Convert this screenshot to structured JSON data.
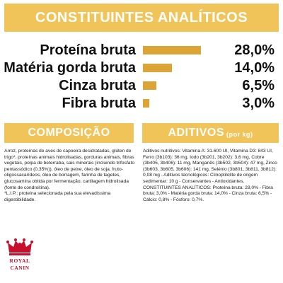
{
  "analytics": {
    "heading": "CONSTITUINTES ANALÍTICOS",
    "rows": [
      {
        "label": "Proteína bruta",
        "value_text": "28,0%",
        "value": 28.0
      },
      {
        "label": "Matéria gorda bruta",
        "value_text": "14,0%",
        "value": 14.0
      },
      {
        "label": "Cinza bruta",
        "value_text": "6,5%",
        "value": 6.5
      },
      {
        "label": "Fibra bruta",
        "value_text": "3,0%",
        "value": 3.0
      }
    ],
    "bar_color": "#dca434"
  },
  "composition": {
    "heading": "COMPOSIÇÃO",
    "paragraphs": [
      "Arroz, proteínas de aves de capoeira desidratadas, glúten de trigo*, proteínas animais hidrolisadas, gorduras animais, fibras vegetais, polpa de beterraba, sais minerais (incluindo trifosfato pentassódico (0,35%)), óleo de peixe, óleo de soja, fruto-oligossacarídeos, óleo de borragem, farinha de tagetes, glucosamina obtida por fermentação, cartilagem hidrolisada (fonte de condroitina).",
      "*L.I.P.: proteína selecionada pela sua elevadíssima digestibilidade."
    ]
  },
  "additives": {
    "heading": "ADITIVOS",
    "unit": "(por kg)",
    "paragraphs": [
      "Aditivos nutritivos: Vitamina A: 31.600 UI, Vitamina D3: 843 UI, Ferro (3b103): 36 mg, Iodo (3b201, 3b202): 3,6 mg, Cobre (3b405, 3b406): 11 mg, Manganês (3b502, 3b504): 47 mg, Zinco (3b603, 3b605, 3b606): 141 mg, Selénio (3b801, 3b811, 3b812): 0,08 mg - Aditivos tecnológicos: Clinoptilolite de origem sedimentar: 10 g - Conservantes - Antioxidantes.",
      "CONSTITUINTES ANALÍTICOS: Proteína bruta: 28,0% - Fibra bruta: 3,0% - Matéria gorda bruta: 14,0% - Cinza bruta: 6,5% - Cálcio: 0,8% - Fósforo: 0,7%."
    ]
  },
  "logo": {
    "line1": "ROYAL",
    "line2": "CANIN"
  },
  "colors": {
    "band": "#f1c45a",
    "logo_red": "#c8102e"
  }
}
